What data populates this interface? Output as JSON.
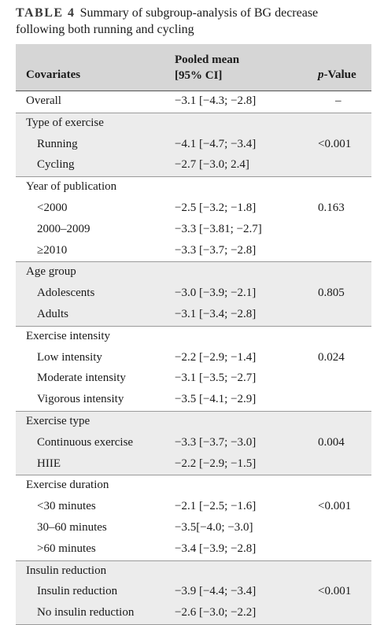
{
  "caption": {
    "label": "TABLE 4",
    "text": "Summary of subgroup-analysis of BG decrease following both running and cycling"
  },
  "header": {
    "covariates": "Covariates",
    "pooled_mean_line1": "Pooled mean",
    "pooled_mean_line2": "[95% CI]",
    "p_value_italic": "p",
    "p_value_rest": "-Value"
  },
  "groups": [
    {
      "shaded": false,
      "rows": [
        {
          "label": "Overall",
          "indent": false,
          "value": "−3.1 [−4.3; −2.8]",
          "p": "–"
        }
      ]
    },
    {
      "shaded": true,
      "rows": [
        {
          "label": "Type of exercise",
          "indent": false,
          "value": "",
          "p": ""
        },
        {
          "label": "Running",
          "indent": true,
          "value": "−4.1 [−4.7; −3.4]",
          "p": "<0.001"
        },
        {
          "label": "Cycling",
          "indent": true,
          "value": "−2.7 [−3.0; 2.4]",
          "p": ""
        }
      ]
    },
    {
      "shaded": false,
      "rows": [
        {
          "label": "Year of publication",
          "indent": false,
          "value": "",
          "p": ""
        },
        {
          "label": "<2000",
          "indent": true,
          "value": "−2.5 [−3.2; −1.8]",
          "p": "0.163"
        },
        {
          "label": "2000–2009",
          "indent": true,
          "value": "−3.3 [−3.81; −2.7]",
          "p": ""
        },
        {
          "label": "≥2010",
          "indent": true,
          "value": "−3.3 [−3.7; −2.8]",
          "p": ""
        }
      ]
    },
    {
      "shaded": true,
      "rows": [
        {
          "label": "Age group",
          "indent": false,
          "value": "",
          "p": ""
        },
        {
          "label": "Adolescents",
          "indent": true,
          "value": "−3.0 [−3.9; −2.1]",
          "p": "0.805"
        },
        {
          "label": "Adults",
          "indent": true,
          "value": "−3.1 [−3.4; −2.8]",
          "p": ""
        }
      ]
    },
    {
      "shaded": false,
      "rows": [
        {
          "label": "Exercise intensity",
          "indent": false,
          "value": "",
          "p": ""
        },
        {
          "label": "Low intensity",
          "indent": true,
          "value": "−2.2 [−2.9; −1.4]",
          "p": "0.024"
        },
        {
          "label": "Moderate intensity",
          "indent": true,
          "value": "−3.1 [−3.5; −2.7]",
          "p": ""
        },
        {
          "label": "Vigorous intensity",
          "indent": true,
          "value": "−3.5 [−4.1; −2.9]",
          "p": ""
        }
      ]
    },
    {
      "shaded": true,
      "rows": [
        {
          "label": "Exercise type",
          "indent": false,
          "value": "",
          "p": ""
        },
        {
          "label": "Continuous exercise",
          "indent": true,
          "value": "−3.3 [−3.7; −3.0]",
          "p": "0.004"
        },
        {
          "label": "HIIE",
          "indent": true,
          "value": "−2.2 [−2.9; −1.5]",
          "p": ""
        }
      ]
    },
    {
      "shaded": false,
      "rows": [
        {
          "label": "Exercise duration",
          "indent": false,
          "value": "",
          "p": ""
        },
        {
          "label": "<30 minutes",
          "indent": true,
          "value": "−2.1 [−2.5; −1.6]",
          "p": "<0.001"
        },
        {
          "label": "30–60 minutes",
          "indent": true,
          "value": "−3.5[−4.0; −3.0]",
          "p": ""
        },
        {
          "label": ">60 minutes",
          "indent": true,
          "value": "−3.4 [−3.9; −2.8]",
          "p": ""
        }
      ]
    },
    {
      "shaded": true,
      "rows": [
        {
          "label": "Insulin reduction",
          "indent": false,
          "value": "",
          "p": ""
        },
        {
          "label": "Insulin reduction",
          "indent": true,
          "value": "−3.9 [−4.4; −3.4]",
          "p": "<0.001"
        },
        {
          "label": "No insulin reduction",
          "indent": true,
          "value": "−2.6 [−3.0; −2.2]",
          "p": ""
        }
      ]
    }
  ]
}
